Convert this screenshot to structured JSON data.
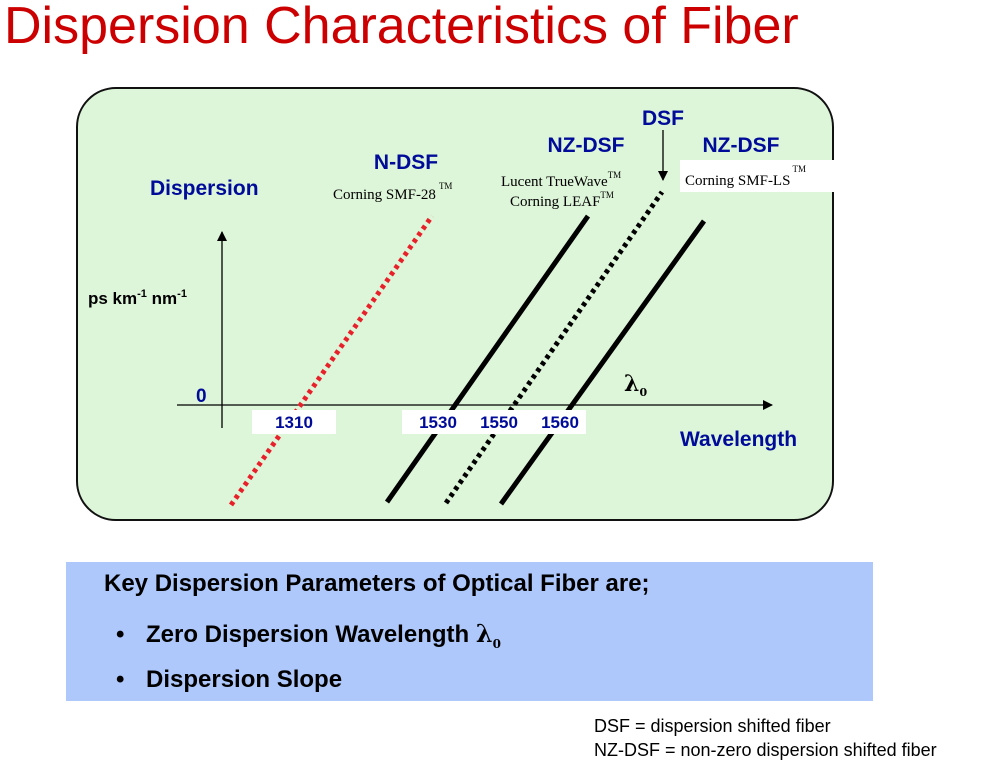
{
  "title": "Dispersion Characteristics of Fiber",
  "diagram": {
    "y_axis_label": "Dispersion",
    "y_units": {
      "base1": "ps km",
      "sup1": "-1",
      "base2": " nm",
      "sup2": "-1"
    },
    "zero_label": "0",
    "x_axis_label": "Wavelength",
    "lambda_symbol": "λ",
    "lambda_subscript": "0",
    "ticks": [
      "1310",
      "1530",
      "1550",
      "1560"
    ],
    "fibers": [
      {
        "type": "N-DSF",
        "product": "Corning SMF-28",
        "tm": "TM",
        "style": "red dotted",
        "color": "#e8202a"
      },
      {
        "type": "NZ-DSF",
        "product": "Lucent TrueWave",
        "product2": "Corning LEAF",
        "tm": "TM",
        "style": "solid black",
        "color": "#000000"
      },
      {
        "type": "DSF",
        "style": "dotted black",
        "color": "#000000"
      },
      {
        "type": "NZ-DSF",
        "product": "Corning SMF-LS",
        "tm": "TM",
        "style": "solid black",
        "color": "#000000"
      }
    ]
  },
  "parameters": {
    "heading": "Key Dispersion Parameters of Optical Fiber are;",
    "bullet_symbol": "•",
    "item1": "Zero Dispersion Wavelength",
    "item1_symbol": "λ",
    "item1_sub": "0",
    "item2": "Dispersion Slope"
  },
  "footnotes": [
    "DSF = dispersion shifted fiber",
    "NZ-DSF = non-zero dispersion shifted fiber"
  ]
}
